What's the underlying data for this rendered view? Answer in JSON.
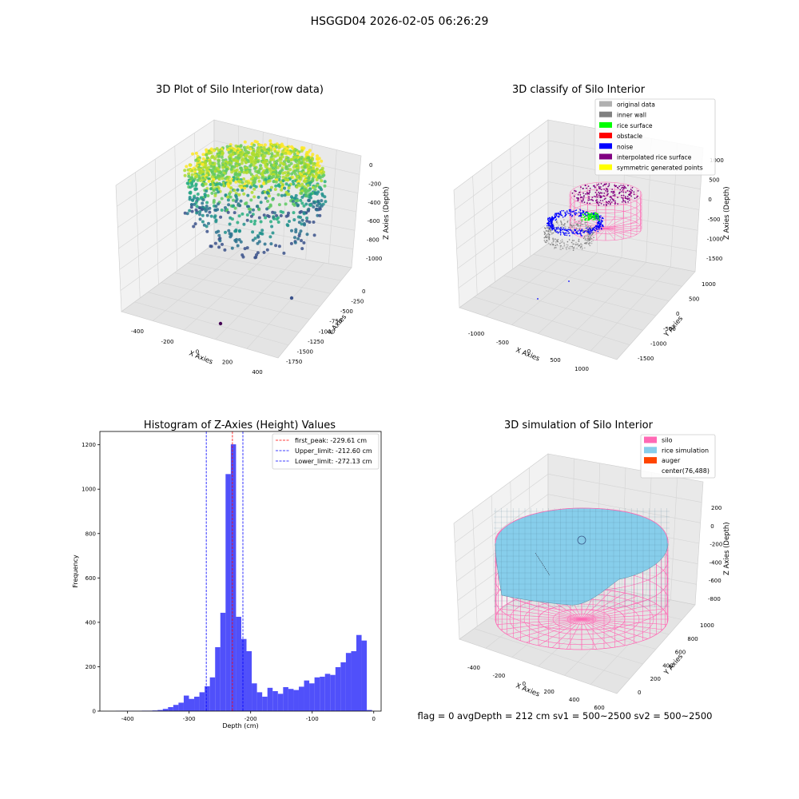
{
  "figure_title": "HSGGD04 2026-02-05 06:26:29",
  "footer_text": "flag = 0     avgDepth = 212 cm  sv1 = 500~2500  sv2 = 500~2500",
  "colors": {
    "histogram_bar": "#5050fa",
    "peak_line": "#ff0000",
    "limit_line": "#0000ff",
    "pane_fill": "#f2f2f2",
    "grid": "#d9d9d9",
    "silo": "#ff69b4",
    "rice": "#87ceeb",
    "auger": "#ff4500"
  },
  "chart_data": [
    {
      "type": "scatter",
      "projection": "3d",
      "title": "3D Plot of Silo Interior(row data)",
      "xlabel": "X Axies",
      "ylabel": "Y Axies",
      "zlabel": "Z Axies (Depth)",
      "x_ticks": [
        "-400",
        "-200",
        "0",
        "200",
        "400"
      ],
      "y_ticks": [
        "0",
        "-250",
        "-500",
        "-750",
        "-1000",
        "-1250",
        "-1500",
        "-1750"
      ],
      "z_ticks": [
        "0",
        "-200",
        "-400",
        "-600",
        "-800",
        "-1000"
      ],
      "colormap": "viridis (by depth)",
      "description_points": "ring-shaped cloud of points around depth -200 to -700, two isolated outliers near the bottom"
    },
    {
      "type": "scatter",
      "projection": "3d",
      "title": "3D classify of Silo Interior",
      "xlabel": "X Axies",
      "ylabel": "Y Axies",
      "zlabel": "Z Axies (Depth)",
      "x_ticks": [
        "-1000",
        "-500",
        "0",
        "500",
        "1000"
      ],
      "y_ticks": [
        "1000",
        "500",
        "0",
        "-500",
        "-1000",
        "-1500"
      ],
      "z_ticks": [
        "1000",
        "500",
        "0",
        "-500",
        "-1000",
        "-1500"
      ],
      "legend": [
        {
          "label": "original data",
          "color": "#b0b0b0"
        },
        {
          "label": "inner wall",
          "color": "#808080"
        },
        {
          "label": "rice surface",
          "color": "#00ff00"
        },
        {
          "label": "obstacle",
          "color": "#ff0000"
        },
        {
          "label": "noise",
          "color": "#0000ff"
        },
        {
          "label": "interpolated rice surface",
          "color": "#800080"
        },
        {
          "label": "symmetric generated points",
          "color": "#ffff00"
        }
      ],
      "legend_position": "top-right"
    },
    {
      "type": "bar",
      "title": "Histogram of Z-Axies (Height) Values",
      "xlabel": "Depth (cm)",
      "ylabel": "Frequency",
      "xlim": [
        -445,
        12
      ],
      "ylim": [
        0,
        1260
      ],
      "x_ticks": [
        -400,
        -300,
        -200,
        -100,
        0
      ],
      "y_ticks": [
        0,
        200,
        400,
        600,
        800,
        1000,
        1200
      ],
      "bin_width": 8.5,
      "bins": [
        {
          "x": -415,
          "y": 1
        },
        {
          "x": -406.5,
          "y": 1
        },
        {
          "x": -398,
          "y": 1
        },
        {
          "x": -389.5,
          "y": 1
        },
        {
          "x": -381,
          "y": 1
        },
        {
          "x": -372.5,
          "y": 2
        },
        {
          "x": -364,
          "y": 2
        },
        {
          "x": -355.5,
          "y": 3
        },
        {
          "x": -347,
          "y": 5
        },
        {
          "x": -338.5,
          "y": 10
        },
        {
          "x": -330,
          "y": 18
        },
        {
          "x": -321.5,
          "y": 28
        },
        {
          "x": -313,
          "y": 38
        },
        {
          "x": -304.5,
          "y": 70
        },
        {
          "x": -296,
          "y": 55
        },
        {
          "x": -287.5,
          "y": 65
        },
        {
          "x": -279,
          "y": 85
        },
        {
          "x": -270.5,
          "y": 112
        },
        {
          "x": -262,
          "y": 152
        },
        {
          "x": -253.5,
          "y": 288
        },
        {
          "x": -245,
          "y": 443
        },
        {
          "x": -236.5,
          "y": 1068
        },
        {
          "x": -228,
          "y": 1202
        },
        {
          "x": -219.5,
          "y": 425
        },
        {
          "x": -211,
          "y": 325
        },
        {
          "x": -202.5,
          "y": 270
        },
        {
          "x": -194,
          "y": 125
        },
        {
          "x": -185.5,
          "y": 85
        },
        {
          "x": -177,
          "y": 65
        },
        {
          "x": -168.5,
          "y": 105
        },
        {
          "x": -160,
          "y": 90
        },
        {
          "x": -151.5,
          "y": 78
        },
        {
          "x": -143,
          "y": 108
        },
        {
          "x": -134.5,
          "y": 100
        },
        {
          "x": -126,
          "y": 95
        },
        {
          "x": -117.5,
          "y": 110
        },
        {
          "x": -109,
          "y": 138
        },
        {
          "x": -100.5,
          "y": 125
        },
        {
          "x": -92,
          "y": 152
        },
        {
          "x": -83.5,
          "y": 155
        },
        {
          "x": -75,
          "y": 168
        },
        {
          "x": -66.5,
          "y": 163
        },
        {
          "x": -58,
          "y": 198
        },
        {
          "x": -49.5,
          "y": 220
        },
        {
          "x": -41,
          "y": 262
        },
        {
          "x": -32.5,
          "y": 270
        },
        {
          "x": -24,
          "y": 343
        },
        {
          "x": -15.5,
          "y": 318
        },
        {
          "x": -7,
          "y": 5
        }
      ],
      "lines": [
        {
          "label": "first_peak: -229.61 cm",
          "x": -229.61,
          "color": "#ff0000"
        },
        {
          "label": "Upper_limit: -212.60 cm",
          "x": -212.6,
          "color": "#0000ff"
        },
        {
          "label": "Lower_limit: -272.13 cm",
          "x": -272.13,
          "color": "#0000ff"
        }
      ],
      "legend_position": "top-right"
    },
    {
      "type": "surface",
      "projection": "3d",
      "title": "3D simulation of Silo Interior",
      "xlabel": "X Axies",
      "ylabel": "Y Axies",
      "zlabel": "Z Axies (Depth)",
      "x_ticks": [
        "-400",
        "-200",
        "0",
        "200",
        "400",
        "600"
      ],
      "y_ticks": [
        "0",
        "200",
        "400",
        "600",
        "800",
        "1000"
      ],
      "z_ticks": [
        "200",
        "0",
        "-200",
        "-400",
        "-600",
        "-800"
      ],
      "legend": [
        {
          "label": "silo",
          "color": "#ff69b4"
        },
        {
          "label": "rice simulation",
          "color": "#87ceeb"
        },
        {
          "label": "auger",
          "color": "#ff4500"
        },
        {
          "label": "center(76,488)",
          "color": ""
        }
      ],
      "legend_position": "top-right"
    }
  ]
}
